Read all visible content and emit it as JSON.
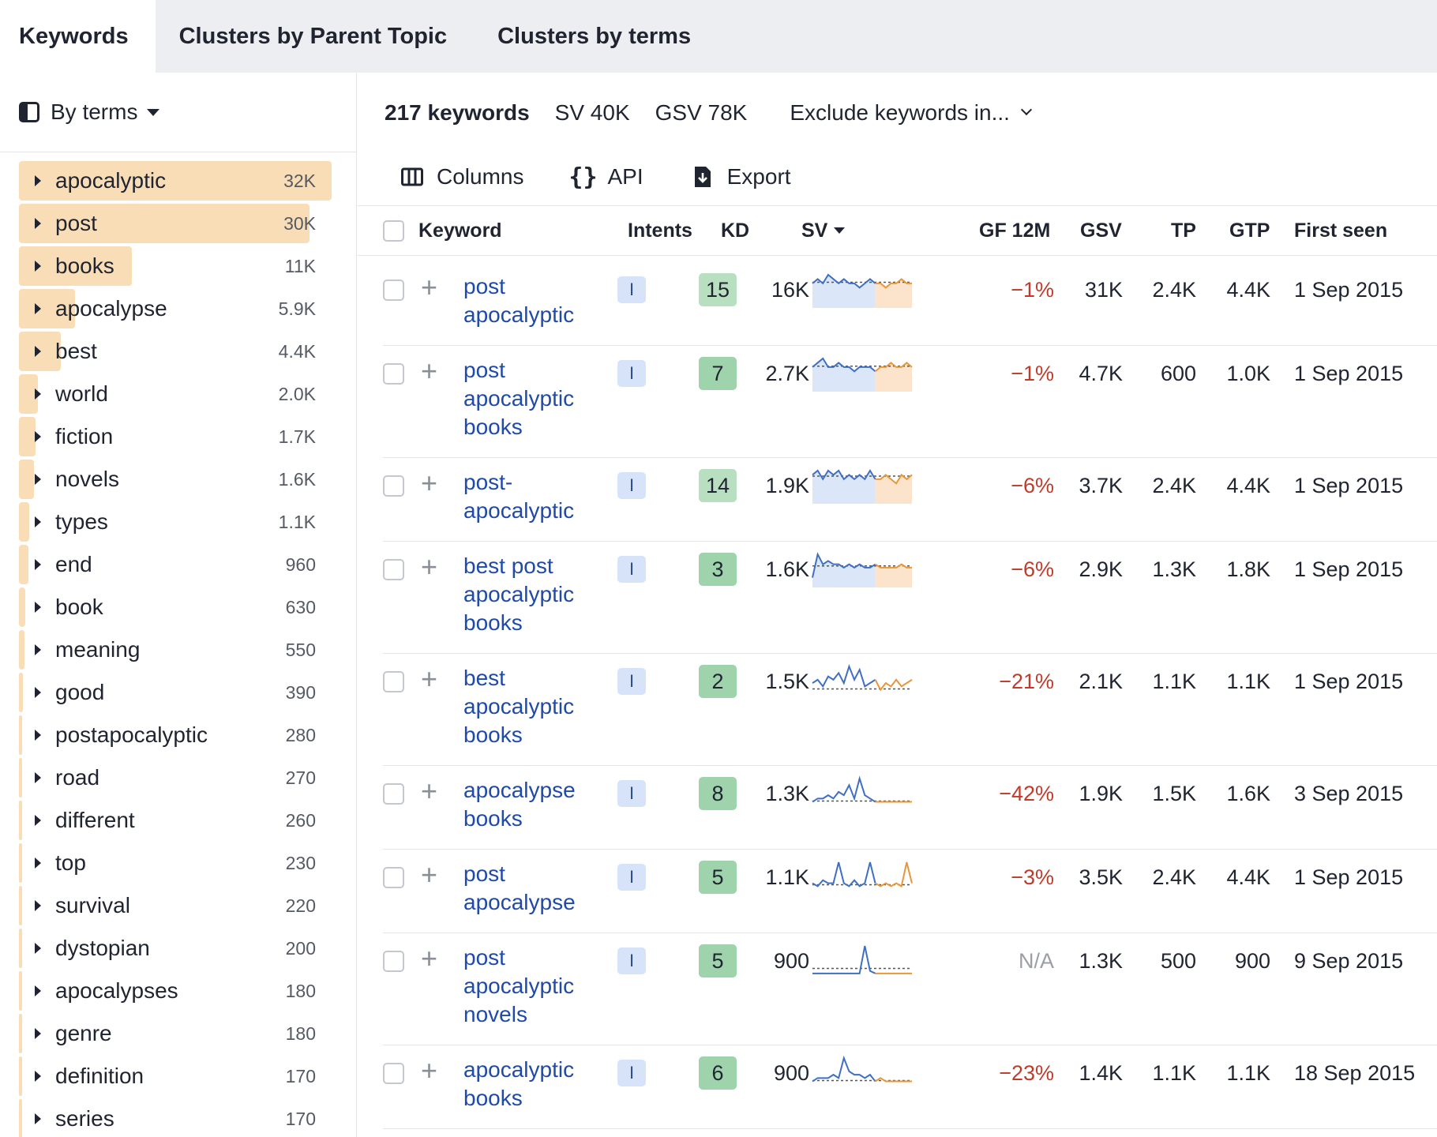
{
  "tabs": [
    {
      "label": "Keywords",
      "active": true
    },
    {
      "label": "Clusters by Parent Topic",
      "active": false
    },
    {
      "label": "Clusters by terms",
      "active": false
    }
  ],
  "sidebar": {
    "mode_label": "By terms",
    "terms": [
      {
        "label": "apocalyptic",
        "count": "32K",
        "share": 1.0
      },
      {
        "label": "post",
        "count": "30K",
        "share": 0.93
      },
      {
        "label": "books",
        "count": "11K",
        "share": 0.36
      },
      {
        "label": "apocalypse",
        "count": "5.9K",
        "share": 0.18
      },
      {
        "label": "best",
        "count": "4.4K",
        "share": 0.135
      },
      {
        "label": "world",
        "count": "2.0K",
        "share": 0.06
      },
      {
        "label": "fiction",
        "count": "1.7K",
        "share": 0.052
      },
      {
        "label": "novels",
        "count": "1.6K",
        "share": 0.048
      },
      {
        "label": "types",
        "count": "1.1K",
        "share": 0.034
      },
      {
        "label": "end",
        "count": "960",
        "share": 0.03
      },
      {
        "label": "book",
        "count": "630",
        "share": 0.02
      },
      {
        "label": "meaning",
        "count": "550",
        "share": 0.017
      },
      {
        "label": "good",
        "count": "390",
        "share": 0.012
      },
      {
        "label": "postapocalyptic",
        "count": "280",
        "share": 0.009
      },
      {
        "label": "road",
        "count": "270",
        "share": 0.008
      },
      {
        "label": "different",
        "count": "260",
        "share": 0.008
      },
      {
        "label": "top",
        "count": "230",
        "share": 0.007
      },
      {
        "label": "survival",
        "count": "220",
        "share": 0.007
      },
      {
        "label": "dystopian",
        "count": "200",
        "share": 0.006
      },
      {
        "label": "apocalypses",
        "count": "180",
        "share": 0.006
      },
      {
        "label": "genre",
        "count": "180",
        "share": 0.006
      },
      {
        "label": "definition",
        "count": "170",
        "share": 0.005
      },
      {
        "label": "series",
        "count": "170",
        "share": 0.005
      }
    ]
  },
  "summary": {
    "keywords": "217 keywords",
    "sv": "SV 40K",
    "gsv": "GSV 78K",
    "exclude": "Exclude keywords in..."
  },
  "toolbar": {
    "columns": "Columns",
    "api": "API",
    "export": "Export"
  },
  "columns": {
    "keyword": "Keyword",
    "intents": "Intents",
    "kd": "KD",
    "sv": "SV",
    "gf": "GF 12M",
    "gsv": "GSV",
    "tp": "TP",
    "gtp": "GTP",
    "first_seen": "First seen"
  },
  "colors": {
    "kd_light": "#b8e0c0",
    "kd_mid": "#9ed3ab",
    "spark_blue": "#3f6fc4",
    "spark_orange": "#e8963a"
  },
  "rows": [
    {
      "keyword": "post apocalyptic",
      "lines": [
        "post",
        "apocalyptic"
      ],
      "intent": "I",
      "kd": "15",
      "sv": "16K",
      "gf": "−1%",
      "gsv": "31K",
      "tp": "2.4K",
      "gtp": "4.4K",
      "first_seen": "1 Sep 2015",
      "trend": [
        5,
        6,
        5,
        7,
        6,
        5,
        6,
        5,
        5,
        4,
        5,
        6,
        5,
        5,
        4,
        5,
        5,
        6,
        5,
        5
      ],
      "trend_shape": "flat"
    },
    {
      "keyword": "post apocalyptic books",
      "lines": [
        "post",
        "apocalyptic",
        "books"
      ],
      "intent": "I",
      "kd": "7",
      "sv": "2.7K",
      "gf": "−1%",
      "gsv": "4.7K",
      "tp": "600",
      "gtp": "1.0K",
      "first_seen": "1 Sep 2015",
      "trend": [
        5,
        6,
        7,
        5,
        5,
        6,
        5,
        5,
        4,
        5,
        5,
        5,
        4,
        5,
        5,
        6,
        5,
        5,
        6,
        5
      ],
      "trend_shape": "flat"
    },
    {
      "keyword": "post-apocalyptic",
      "lines": [
        "post-",
        "apocalyptic"
      ],
      "intent": "I",
      "kd": "14",
      "sv": "1.9K",
      "gf": "−6%",
      "gsv": "3.7K",
      "tp": "2.4K",
      "gtp": "4.4K",
      "first_seen": "1 Sep 2015",
      "trend": [
        6,
        7,
        5,
        7,
        6,
        7,
        5,
        6,
        5,
        6,
        5,
        7,
        5,
        5,
        6,
        5,
        4,
        6,
        5,
        6
      ],
      "trend_shape": "flat"
    },
    {
      "keyword": "best post apocalyptic books",
      "lines": [
        "best post",
        "apocalyptic",
        "books"
      ],
      "intent": "I",
      "kd": "3",
      "sv": "1.6K",
      "gf": "−6%",
      "gsv": "2.9K",
      "tp": "1.3K",
      "gtp": "1.8K",
      "first_seen": "1 Sep 2015",
      "trend": [
        2,
        9,
        6,
        7,
        6,
        6,
        5,
        6,
        5,
        6,
        5,
        5,
        6,
        5,
        5,
        5,
        5,
        6,
        5,
        5
      ],
      "trend_shape": "flat"
    },
    {
      "keyword": "best apocalyptic books",
      "lines": [
        "best",
        "apocalyptic",
        "books"
      ],
      "intent": "I",
      "kd": "2",
      "sv": "1.5K",
      "gf": "−21%",
      "gsv": "2.1K",
      "tp": "1.1K",
      "gtp": "1.1K",
      "first_seen": "1 Sep 2015",
      "trend": [
        4,
        5,
        3,
        6,
        5,
        7,
        4,
        9,
        5,
        8,
        3,
        4,
        5,
        2,
        4,
        3,
        5,
        3,
        4,
        5
      ],
      "trend_shape": "spiky"
    },
    {
      "keyword": "apocalypse books",
      "lines": [
        "apocalypse",
        "books"
      ],
      "intent": "I",
      "kd": "8",
      "sv": "1.3K",
      "gf": "−42%",
      "gsv": "1.9K",
      "tp": "1.5K",
      "gtp": "1.6K",
      "first_seen": "3 Sep 2015",
      "trend": [
        2,
        3,
        3,
        4,
        3,
        5,
        4,
        7,
        3,
        9,
        4,
        3,
        2,
        2,
        2,
        2,
        2,
        2,
        2,
        2
      ],
      "trend_shape": "spiky"
    },
    {
      "keyword": "post apocalypse",
      "lines": [
        "post",
        "apocalypse"
      ],
      "intent": "I",
      "kd": "5",
      "sv": "1.1K",
      "gf": "−3%",
      "gsv": "3.5K",
      "tp": "2.4K",
      "gtp": "4.4K",
      "first_seen": "1 Sep 2015",
      "trend": [
        3,
        2,
        4,
        3,
        3,
        10,
        3,
        2,
        4,
        2,
        3,
        10,
        3,
        2,
        3,
        2,
        3,
        2,
        10,
        3
      ],
      "trend_shape": "spiky"
    },
    {
      "keyword": "post apocalyptic novels",
      "lines": [
        "post",
        "apocalyptic",
        "novels"
      ],
      "intent": "I",
      "kd": "5",
      "sv": "900",
      "gf": "N/A",
      "gsv": "1.3K",
      "tp": "500",
      "gtp": "900",
      "first_seen": "9 Sep 2015",
      "trend": [
        1,
        1,
        1,
        1,
        1,
        1,
        1,
        1,
        1,
        1,
        12,
        2,
        1,
        1,
        1,
        1,
        1,
        1,
        1,
        1
      ],
      "trend_shape": "spike-only"
    },
    {
      "keyword": "apocalyptic books",
      "lines": [
        "apocalyptic",
        "books"
      ],
      "intent": "I",
      "kd": "6",
      "sv": "900",
      "gf": "−23%",
      "gsv": "1.4K",
      "tp": "1.1K",
      "gtp": "1.1K",
      "first_seen": "18 Sep 2015",
      "trend": [
        2,
        3,
        3,
        3,
        4,
        3,
        9,
        5,
        4,
        4,
        3,
        4,
        2,
        3,
        2,
        2,
        2,
        2,
        2,
        2
      ],
      "trend_shape": "spiky"
    }
  ]
}
